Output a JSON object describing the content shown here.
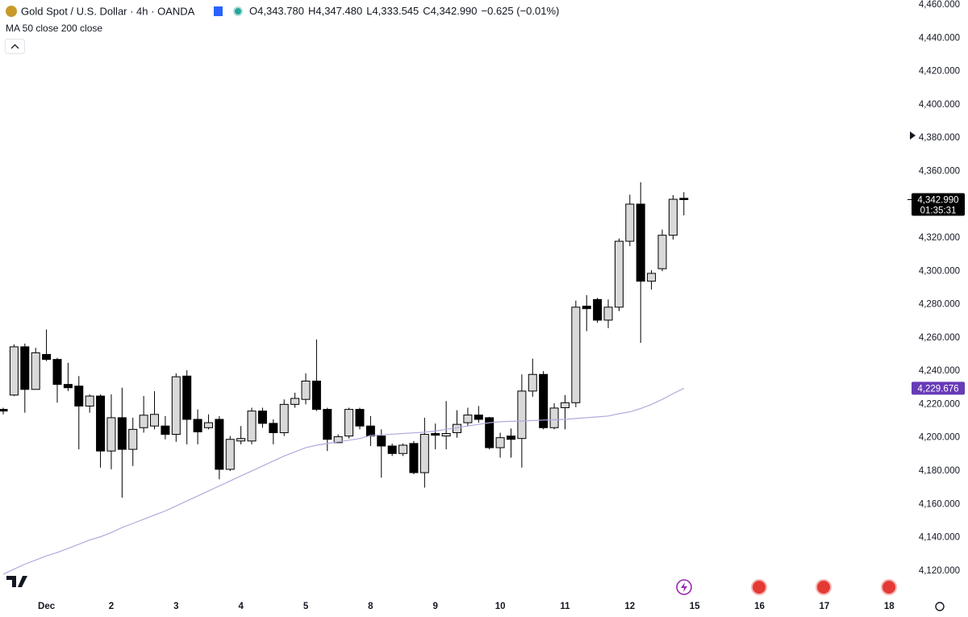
{
  "chart_data": {
    "type": "candlestick",
    "title": "Gold Spot / U.S. Dollar · 4h · OANDA",
    "ohlc_labels": [
      "O",
      "H",
      "L",
      "C"
    ],
    "ohlc_values": [
      "4,343.780",
      "4,347.480",
      "4,333.545",
      "4,342.990"
    ],
    "change": "−0.625 (−0.01%)",
    "indicator_label": "MA 50 close 200 close",
    "up_color": "#d9d9d9",
    "down_color": "#000000",
    "open": [
      4217,
      4225.6,
      4254.6,
      4229,
      4250,
      4247,
      4232,
      4231,
      4219,
      4225,
      4192,
      4212,
      4193,
      4206,
      4207,
      4207,
      4202,
      4237,
      4211,
      4206,
      4211,
      4181,
      4198,
      4198,
      4216,
      4208.6,
      4203,
      4220,
      4223,
      4234,
      4217,
      4197,
      4201,
      4217,
      4207,
      4201,
      4195,
      4190.5,
      4196.5,
      4179,
      4202.5,
      4201,
      4203,
      4209,
      4213.6,
      4212,
      4194,
      4201,
      4199.5,
      4228,
      4238,
      4206,
      4218,
      4221,
      4279,
      4283,
      4270.6,
      4278.4,
      4318,
      4340.3,
      4294,
      4301.5,
      4321.6,
      4343.78
    ],
    "high": [
      4218,
      4256,
      4256.5,
      4254,
      4265,
      4248,
      4245,
      4237,
      4226,
      4226,
      4226,
      4230,
      4212,
      4225,
      4228,
      4213,
      4238.6,
      4240.5,
      4217,
      4214,
      4213,
      4201,
      4207,
      4218,
      4218,
      4211,
      4223,
      4227,
      4238.6,
      4259,
      4218,
      4202,
      4218,
      4218,
      4213,
      4205,
      4196.5,
      4196.5,
      4198,
      4212,
      4208.5,
      4222,
      4216.5,
      4218,
      4219,
      4212.5,
      4203,
      4205.5,
      4238,
      4247.5,
      4240,
      4220.7,
      4225.6,
      4282.3,
      4285.6,
      4284,
      4283,
      4319.6,
      4346,
      4353.4,
      4300.6,
      4325,
      4345.7,
      4347.48
    ],
    "low": [
      4214,
      4225,
      4215,
      4229,
      4246,
      4221,
      4228,
      4193,
      4215,
      4182,
      4181,
      4164,
      4183,
      4203,
      4205,
      4199,
      4197.5,
      4196,
      4196,
      4205,
      4175,
      4180,
      4196,
      4196,
      4206,
      4196,
      4201,
      4218,
      4220,
      4216,
      4192,
      4197,
      4199.5,
      4205,
      4195,
      4176,
      4189,
      4189,
      4178,
      4170,
      4193,
      4193,
      4200,
      4207,
      4209,
      4193,
      4188,
      4188,
      4182,
      4224.6,
      4205,
      4205,
      4205,
      4218.3,
      4264,
      4269,
      4265.8,
      4276,
      4315,
      4257,
      4289,
      4300,
      4319,
      4333.545
    ],
    "close": [
      4216,
      4254.6,
      4229,
      4251,
      4247,
      4232,
      4230,
      4219,
      4225,
      4192,
      4212,
      4193,
      4205,
      4213.5,
      4214,
      4202,
      4236.6,
      4211,
      4203.5,
      4209,
      4181,
      4199,
      4199.5,
      4216,
      4208.6,
      4203,
      4220,
      4223.6,
      4234,
      4217,
      4199,
      4200.6,
      4217,
      4207,
      4201,
      4195,
      4190.5,
      4195.5,
      4179,
      4202,
      4201.5,
      4202.5,
      4208,
      4213.6,
      4211,
      4194,
      4200,
      4199,
      4228,
      4238,
      4206,
      4217.8,
      4221,
      4278.4,
      4277.5,
      4270.6,
      4278.4,
      4318,
      4340.3,
      4294,
      4298.7,
      4321.6,
      4343.2,
      4342.99
    ],
    "ma": {
      "color": "#b3a9dd",
      "values": [
        4118,
        4121,
        4124,
        4126.5,
        4129,
        4131,
        4133.5,
        4136,
        4138.5,
        4140.5,
        4143,
        4146,
        4148.5,
        4151,
        4153.5,
        4156,
        4159,
        4162,
        4165,
        4168,
        4171,
        4174,
        4177,
        4180,
        4183,
        4186,
        4189,
        4191.5,
        4194,
        4195.5,
        4196.5,
        4197.5,
        4198.5,
        4199.5,
        4201.3,
        4201.7,
        4202.1,
        4202.5,
        4202.9,
        4203.3,
        4204,
        4205,
        4206,
        4207,
        4208,
        4209,
        4209.6,
        4209.8,
        4210,
        4210.3,
        4210.6,
        4210.8,
        4211,
        4211.5,
        4212,
        4212.5,
        4213,
        4214.4,
        4215.5,
        4217.5,
        4220,
        4223,
        4226.5,
        4229.676
      ]
    },
    "last_price": {
      "value": 4342.99,
      "label": "4,342.990",
      "countdown": "01:35:31",
      "color": "#000000"
    },
    "ma_price": {
      "value": 4229.676,
      "label": "4,229.676",
      "color": "#673ab7"
    },
    "xlim": [
      -0.3,
      83.7
    ],
    "xticks": [
      {
        "value": 4,
        "label": "Dec"
      },
      {
        "value": 10,
        "label": "2"
      },
      {
        "value": 16,
        "label": "3"
      },
      {
        "value": 22,
        "label": "4"
      },
      {
        "value": 28,
        "label": "5"
      },
      {
        "value": 34,
        "label": "8"
      },
      {
        "value": 40,
        "label": "9"
      },
      {
        "value": 46,
        "label": "10"
      },
      {
        "value": 52,
        "label": "11"
      },
      {
        "value": 58,
        "label": "12"
      },
      {
        "value": 64,
        "label": "15"
      },
      {
        "value": 70,
        "label": "16"
      },
      {
        "value": 76,
        "label": "17"
      },
      {
        "value": 82,
        "label": "18"
      }
    ],
    "ylim": [
      4104.4,
      4462.9
    ],
    "yticks": [
      {
        "value": 4120,
        "label": "4,120.000"
      },
      {
        "value": 4140,
        "label": "4,140.000"
      },
      {
        "value": 4160,
        "label": "4,160.000"
      },
      {
        "value": 4180,
        "label": "4,180.000"
      },
      {
        "value": 4200,
        "label": "4,200.000"
      },
      {
        "value": 4220,
        "label": "4,220.000"
      },
      {
        "value": 4240,
        "label": "4,240.000"
      },
      {
        "value": 4260,
        "label": "4,260.000"
      },
      {
        "value": 4280,
        "label": "4,280.000"
      },
      {
        "value": 4300,
        "label": "4,300.000"
      },
      {
        "value": 4320,
        "label": "4,320.000"
      },
      {
        "value": 4340,
        "label": "4,340.000"
      },
      {
        "value": 4360,
        "label": "4,360.000"
      },
      {
        "value": 4380,
        "label": "4,380.000"
      },
      {
        "value": 4400,
        "label": "4,400.000"
      },
      {
        "value": 4420,
        "label": "4,420.000"
      },
      {
        "value": 4440,
        "label": "4,440.000"
      },
      {
        "value": 4460,
        "label": "4,460.000"
      }
    ],
    "grid": false
  }
}
